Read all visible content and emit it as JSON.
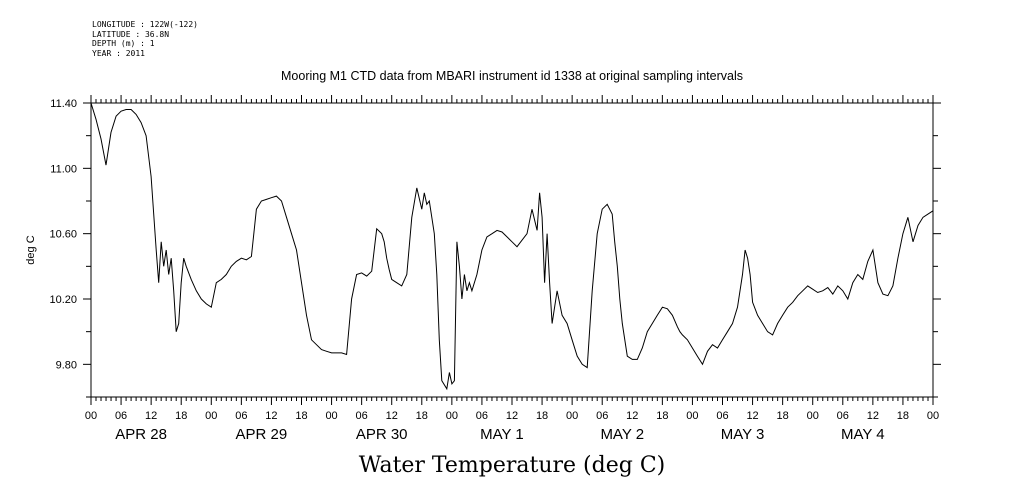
{
  "header": {
    "meta_lines": [
      "LONGITUDE : 122W(-122)",
      "LATITUDE : 36.8N",
      "DEPTH (m) : 1",
      "YEAR : 2011"
    ]
  },
  "chart_data": {
    "type": "line",
    "title": "Mooring M1 CTD data from MBARI instrument id 1338 at original sampling intervals",
    "xlabel": "Water Temperature (deg C)",
    "ylabel": "deg C",
    "ylim": [
      9.6,
      11.4
    ],
    "yticks": [
      9.8,
      10.2,
      10.6,
      11.0,
      11.4
    ],
    "ytick_labels": [
      "9.80",
      "10.20",
      "10.60",
      "11.00",
      "11.40"
    ],
    "xlim_hours": [
      0,
      168
    ],
    "x_start": "2011-04-28T00:00",
    "hour_tick_labels": [
      "00",
      "06",
      "12",
      "18",
      "00",
      "06",
      "12",
      "18",
      "00",
      "06",
      "12",
      "18",
      "00",
      "06",
      "12",
      "18",
      "00",
      "06",
      "12",
      "18",
      "00",
      "06",
      "12",
      "18",
      "00",
      "06",
      "12",
      "18",
      "00"
    ],
    "day_labels": [
      "APR 28",
      "APR 29",
      "APR 30",
      "MAY  1",
      "MAY  2",
      "MAY  3",
      "MAY  4"
    ],
    "grid": false,
    "legend": "none",
    "line_color": "#000000",
    "series": [
      {
        "x_hours": [
          0,
          1,
          2,
          3,
          4,
          5,
          6,
          7,
          8,
          9,
          10,
          11,
          12,
          13,
          13.5,
          14,
          14.5,
          15,
          15.5,
          16,
          16.5,
          17,
          17.5,
          18,
          18.5,
          19,
          20,
          21,
          22,
          23,
          24,
          25,
          26,
          27,
          28,
          29,
          30,
          31,
          32,
          33,
          34,
          35,
          36,
          37,
          38,
          39,
          40,
          41,
          42,
          43,
          44,
          45,
          46,
          47,
          48,
          49,
          50,
          51,
          52,
          53,
          54,
          55,
          56,
          57,
          58,
          58.5,
          59,
          59.5,
          60,
          61,
          62,
          63,
          64,
          65,
          66,
          66.5,
          67,
          67.5,
          68,
          68.5,
          69,
          69.5,
          70,
          71,
          71.5,
          72,
          72.5,
          73,
          73.5,
          74,
          74.5,
          75,
          75.5,
          76,
          77,
          78,
          79,
          80,
          81,
          82,
          83,
          84,
          85,
          86,
          87,
          88,
          89,
          89.5,
          90,
          90.5,
          91,
          91.5,
          92,
          93,
          94,
          95,
          96,
          97,
          98,
          99,
          100,
          101,
          102,
          103,
          104,
          104.5,
          105,
          105.5,
          106,
          107,
          108,
          109,
          110,
          111,
          112,
          113,
          114,
          115,
          116,
          117,
          117.5,
          118,
          119,
          120,
          121,
          122,
          123,
          124,
          125,
          126,
          127,
          128,
          129,
          130,
          130.5,
          131,
          131.5,
          132,
          133,
          134,
          135,
          136,
          137,
          138,
          139,
          140,
          141,
          142,
          143,
          144,
          145,
          146,
          147,
          148,
          149,
          150,
          151,
          152,
          153,
          154,
          155,
          156,
          157,
          158,
          159,
          160,
          161,
          162,
          163,
          164,
          165,
          166,
          167,
          168
        ],
        "y_values": [
          11.4,
          11.3,
          11.18,
          11.02,
          11.22,
          11.32,
          11.35,
          11.36,
          11.36,
          11.33,
          11.28,
          11.2,
          10.95,
          10.5,
          10.3,
          10.55,
          10.4,
          10.5,
          10.35,
          10.45,
          10.25,
          10.0,
          10.05,
          10.3,
          10.45,
          10.4,
          10.32,
          10.25,
          10.2,
          10.17,
          10.15,
          10.3,
          10.32,
          10.35,
          10.4,
          10.43,
          10.45,
          10.44,
          10.46,
          10.75,
          10.8,
          10.81,
          10.82,
          10.83,
          10.8,
          10.7,
          10.6,
          10.5,
          10.3,
          10.1,
          9.95,
          9.92,
          9.89,
          9.88,
          9.87,
          9.87,
          9.87,
          9.86,
          10.2,
          10.35,
          10.36,
          10.34,
          10.37,
          10.63,
          10.6,
          10.55,
          10.45,
          10.38,
          10.32,
          10.3,
          10.28,
          10.35,
          10.7,
          10.88,
          10.75,
          10.85,
          10.78,
          10.8,
          10.7,
          10.6,
          10.35,
          9.95,
          9.7,
          9.65,
          9.75,
          9.68,
          9.7,
          10.55,
          10.4,
          10.2,
          10.35,
          10.25,
          10.3,
          10.25,
          10.35,
          10.5,
          10.58,
          10.6,
          10.62,
          10.61,
          10.58,
          10.55,
          10.52,
          10.56,
          10.6,
          10.75,
          10.62,
          10.85,
          10.7,
          10.3,
          10.6,
          10.3,
          10.05,
          10.25,
          10.1,
          10.05,
          9.95,
          9.85,
          9.8,
          9.78,
          10.25,
          10.6,
          10.75,
          10.78,
          10.72,
          10.55,
          10.4,
          10.2,
          10.05,
          9.85,
          9.83,
          9.83,
          9.9,
          10.0,
          10.05,
          10.1,
          10.15,
          10.14,
          10.1,
          10.03,
          10.0,
          9.98,
          9.95,
          9.9,
          9.85,
          9.8,
          9.88,
          9.92,
          9.9,
          9.95,
          10.0,
          10.05,
          10.15,
          10.35,
          10.5,
          10.45,
          10.35,
          10.18,
          10.1,
          10.05,
          10.0,
          9.98,
          10.05,
          10.1,
          10.15,
          10.18,
          10.22,
          10.25,
          10.28,
          10.26,
          10.24,
          10.25,
          10.27,
          10.23,
          10.28,
          10.25,
          10.2,
          10.3,
          10.35,
          10.32,
          10.43,
          10.5,
          10.3,
          10.23,
          10.22,
          10.28,
          10.45,
          10.6,
          10.7,
          10.55,
          10.65,
          10.7,
          10.72,
          10.74
        ]
      }
    ]
  }
}
